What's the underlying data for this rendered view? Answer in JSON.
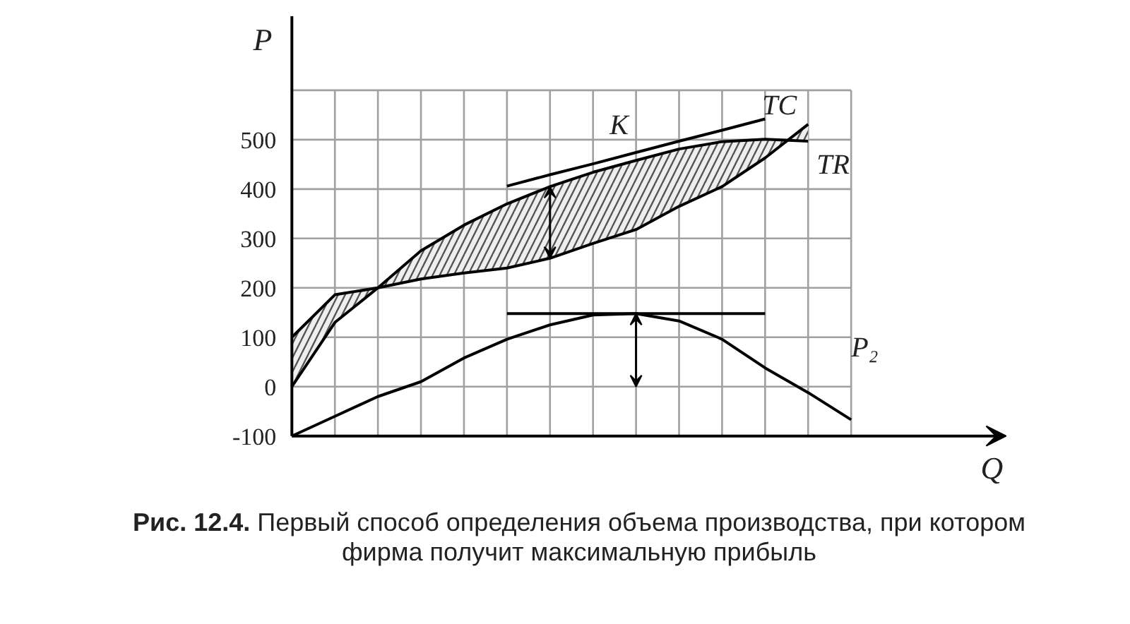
{
  "chart_data": {
    "type": "line",
    "xlabel": "Q",
    "ylabel": "P",
    "ylim": [
      -100,
      750
    ],
    "categories": [
      null,
      null,
      null,
      null,
      null,
      null,
      null,
      null,
      null,
      null,
      null,
      null,
      null,
      null
    ],
    "yticks": [
      -100,
      0,
      100,
      200,
      300,
      400,
      500,
      {
        "value": 600,
        "label": null
      }
    ],
    "tick_labels": "y",
    "grid": true,
    "marker": "none",
    "line_style": "solid",
    "series": [
      {
        "name": "TR",
        "color": "#000000",
        "values": [
          0,
          130,
          200,
          275,
          327,
          370,
          405,
          434,
          458,
          481,
          496,
          501,
          497,
          null
        ],
        "lower": [
          100,
          186,
          200,
          218,
          230,
          240,
          260,
          290,
          318,
          365,
          405,
          463,
          531,
          null
        ],
        "upper": [
          0,
          130,
          200,
          275,
          327,
          370,
          405,
          434,
          458,
          481,
          496,
          501,
          497,
          null
        ]
      },
      {
        "name": "TC",
        "color": "#000000",
        "values": [
          100,
          186,
          200,
          218,
          230,
          240,
          260,
          290,
          318,
          365,
          405,
          463,
          531,
          null
        ]
      },
      {
        "name": "P₂",
        "color": "#000000",
        "values": [
          -100,
          -60,
          -20,
          10,
          58,
          96,
          125,
          145,
          148,
          133,
          96,
          38,
          -12,
          -67
        ]
      },
      {
        "name": "K",
        "color": "#000000",
        "values": [
          null,
          null,
          null,
          null,
          null,
          406,
          429,
          451,
          474,
          497,
          519,
          542,
          null,
          null
        ]
      },
      {
        "color": "#000000",
        "values": [
          null,
          null,
          null,
          null,
          null,
          148,
          148,
          148,
          148,
          148,
          148,
          148,
          null,
          null
        ]
      }
    ],
    "annotations": [
      "Рис. 12.4.",
      "Первый способ определения объема производства, при котором фирма получит максимальную прибыль"
    ]
  }
}
